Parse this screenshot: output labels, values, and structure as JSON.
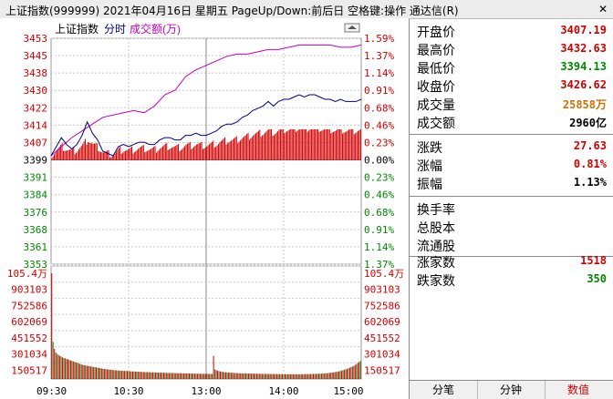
{
  "window": {
    "title": "上证指数(999999)  2021年04月16日  星期五  PageUp/Down:前后日  空格键:操作  通达信(R)",
    "close_label": "✕"
  },
  "chart_header": {
    "index_name": "上证指数",
    "mode": "分时",
    "volume_label": "成交额(万)"
  },
  "colors": {
    "up": "#d10000",
    "down": "#008800",
    "index_line": "#000080",
    "avg_line": "#c000c0",
    "grid": "#c8c8c8",
    "volume_bar": "#d10000"
  },
  "chart_data": [
    {
      "type": "line",
      "x_ticks": [
        "09:30",
        "10:30",
        "13:00",
        "14:00",
        "15:00"
      ],
      "price_ticks": [
        "3453",
        "3445",
        "3438",
        "3430",
        "3422",
        "3414",
        "3407",
        "3399",
        "3391",
        "3384",
        "3376",
        "3368",
        "3361",
        "3353"
      ],
      "pct_ticks": [
        "1.59%",
        "1.37%",
        "1.14%",
        "0.91%",
        "0.68%",
        "0.46%",
        "0.23%",
        "0.00%",
        "0.23%",
        "0.46%",
        "0.68%",
        "0.91%",
        "1.14%",
        "1.37%"
      ],
      "prev_close": 3399,
      "ylim": [
        3353,
        3453
      ],
      "series": [
        {
          "points": [
            [
              0,
              3401
            ],
            [
              4,
              3405
            ],
            [
              8,
              3409
            ],
            [
              12,
              3406
            ],
            [
              16,
              3404
            ],
            [
              20,
              3406
            ],
            [
              24,
              3410
            ],
            [
              28,
              3416
            ],
            [
              32,
              3411
            ],
            [
              36,
              3408
            ],
            [
              40,
              3403
            ],
            [
              44,
              3402
            ],
            [
              48,
              3401
            ],
            [
              52,
              3405
            ],
            [
              56,
              3406
            ],
            [
              60,
              3405
            ],
            [
              64,
              3406
            ],
            [
              68,
              3407
            ],
            [
              72,
              3407
            ],
            [
              76,
              3406
            ],
            [
              80,
              3406
            ],
            [
              84,
              3408
            ],
            [
              88,
              3409
            ],
            [
              92,
              3409
            ],
            [
              96,
              3408
            ],
            [
              100,
              3408
            ],
            [
              104,
              3410
            ],
            [
              108,
              3410
            ],
            [
              112,
              3411
            ],
            [
              116,
              3410
            ],
            [
              120,
              3410
            ],
            [
              124,
              3411
            ],
            [
              128,
              3412
            ],
            [
              132,
              3414
            ],
            [
              136,
              3415
            ],
            [
              140,
              3415
            ],
            [
              144,
              3416
            ],
            [
              148,
              3418
            ],
            [
              152,
              3419
            ],
            [
              156,
              3421
            ],
            [
              160,
              3422
            ],
            [
              164,
              3423
            ],
            [
              168,
              3425
            ],
            [
              172,
              3423
            ],
            [
              176,
              3425
            ],
            [
              180,
              3426
            ],
            [
              184,
              3426
            ],
            [
              188,
              3427
            ],
            [
              192,
              3428
            ],
            [
              196,
              3427
            ],
            [
              200,
              3428
            ],
            [
              204,
              3428
            ],
            [
              208,
              3427
            ],
            [
              212,
              3426
            ],
            [
              216,
              3426
            ],
            [
              220,
              3425
            ],
            [
              224,
              3426
            ],
            [
              228,
              3425
            ],
            [
              232,
              3425
            ],
            [
              236,
              3425
            ],
            [
              240,
              3426
            ]
          ]
        },
        {
          "points": [
            [
              0,
              3401
            ],
            [
              8,
              3405
            ],
            [
              16,
              3409
            ],
            [
              24,
              3412
            ],
            [
              32,
              3415
            ],
            [
              40,
              3418
            ],
            [
              48,
              3419
            ],
            [
              56,
              3420
            ],
            [
              64,
              3421
            ],
            [
              72,
              3420
            ],
            [
              80,
              3423
            ],
            [
              88,
              3428
            ],
            [
              96,
              3430
            ],
            [
              104,
              3436
            ],
            [
              112,
              3439
            ],
            [
              120,
              3441
            ],
            [
              128,
              3443
            ],
            [
              136,
              3445
            ],
            [
              144,
              3446
            ],
            [
              152,
              3446
            ],
            [
              160,
              3447
            ],
            [
              168,
              3448
            ],
            [
              176,
              3448
            ],
            [
              184,
              3449
            ],
            [
              192,
              3450
            ],
            [
              200,
              3450
            ],
            [
              208,
              3450
            ],
            [
              216,
              3450
            ],
            [
              224,
              3449
            ],
            [
              232,
              3449
            ],
            [
              240,
              3450
            ]
          ]
        }
      ]
    },
    {
      "type": "bar",
      "y_ticks": [
        "105.4万",
        "903103",
        "752586",
        "602069",
        "451552",
        "301034",
        "150517"
      ],
      "ylim": [
        0,
        1054000
      ],
      "values": [
        1054000,
        370000,
        300000,
        265000,
        250000,
        240000,
        230000,
        225000,
        215000,
        210000,
        205000,
        200000,
        195000,
        190000,
        185000,
        180000,
        175000,
        170000,
        165000,
        160000,
        155000,
        150000,
        145000,
        140000,
        138000,
        135000,
        132000,
        130000,
        128000,
        125000,
        122000,
        120000,
        118000,
        115000,
        112000,
        110000,
        108000,
        105000,
        102000,
        100000,
        98000,
        96000,
        95000,
        93000,
        92000,
        90000,
        88000,
        87000,
        86000,
        85000,
        84000,
        83000,
        82000,
        81000,
        80000,
        80000,
        79000,
        78000,
        77000,
        76000,
        75000,
        74000,
        74000,
        73000,
        72000,
        72000,
        71000,
        70000,
        70000,
        69000,
        68000,
        68000,
        67000,
        67000,
        66000,
        66000,
        65000,
        65000,
        64000,
        64000,
        63000,
        63000,
        62000,
        62000,
        61000,
        61000,
        60000,
        60000,
        60000,
        59000,
        59000,
        58000,
        58000,
        58000,
        57000,
        57000,
        57000,
        56000,
        56000,
        56000,
        55000,
        55000,
        55000,
        54000,
        54000,
        54000,
        53000,
        53000,
        53000,
        52000,
        52000,
        52000,
        52000,
        51000,
        51000,
        51000,
        50000,
        50000,
        50000,
        50000,
        230000,
        95000,
        88000,
        82000,
        78000,
        75000,
        72000,
        70000,
        68000,
        66000,
        65000,
        64000,
        63000,
        62000,
        61000,
        60000,
        59000,
        58000,
        58000,
        57000,
        57000,
        56000,
        56000,
        55000,
        55000,
        54000,
        54000,
        54000,
        53000,
        53000,
        53000,
        52000,
        52000,
        52000,
        51000,
        51000,
        51000,
        51000,
        50000,
        50000,
        50000,
        50000,
        50000,
        49000,
        49000,
        49000,
        49000,
        49000,
        48000,
        48000,
        48000,
        48000,
        48000,
        48000,
        47000,
        47000,
        47000,
        47000,
        47000,
        47000,
        47000,
        47000,
        47000,
        47000,
        47000,
        47000,
        47000,
        48000,
        48000,
        48000,
        48000,
        49000,
        49000,
        49000,
        50000,
        50000,
        51000,
        51000,
        52000,
        52000,
        53000,
        54000,
        55000,
        56000,
        57000,
        58000,
        60000,
        62000,
        64000,
        66000,
        68000,
        70000,
        73000,
        76000,
        80000,
        84000,
        88000,
        92000,
        96000,
        100000,
        106000,
        112000,
        118000,
        124000,
        130000,
        140000,
        150000,
        160000,
        170000,
        180000
      ]
    }
  ],
  "quote": {
    "open": {
      "label": "开盘价",
      "value": "3407.19"
    },
    "high": {
      "label": "最高价",
      "value": "3432.63"
    },
    "low": {
      "label": "最低价",
      "value": "3394.13"
    },
    "close": {
      "label": "收盘价",
      "value": "3426.62"
    },
    "volume": {
      "label": "成交量",
      "value": "25858万"
    },
    "amount": {
      "label": "成交额",
      "value": "2960亿"
    },
    "change": {
      "label": "涨跌",
      "value": "27.63"
    },
    "change_pct": {
      "label": "涨幅",
      "value": "0.81%"
    },
    "amplitude": {
      "label": "振幅",
      "value": "1.13%"
    },
    "turnover": {
      "label": "换手率",
      "value": ""
    },
    "total_shares": {
      "label": "总股本",
      "value": ""
    },
    "float_shares": {
      "label": "流通股",
      "value": ""
    },
    "adv": {
      "label": "涨家数",
      "value": "1518"
    },
    "dec": {
      "label": "跌家数",
      "value": "350"
    }
  },
  "tabs": [
    {
      "label": "分笔"
    },
    {
      "label": "分钟"
    },
    {
      "label": "数值"
    }
  ]
}
